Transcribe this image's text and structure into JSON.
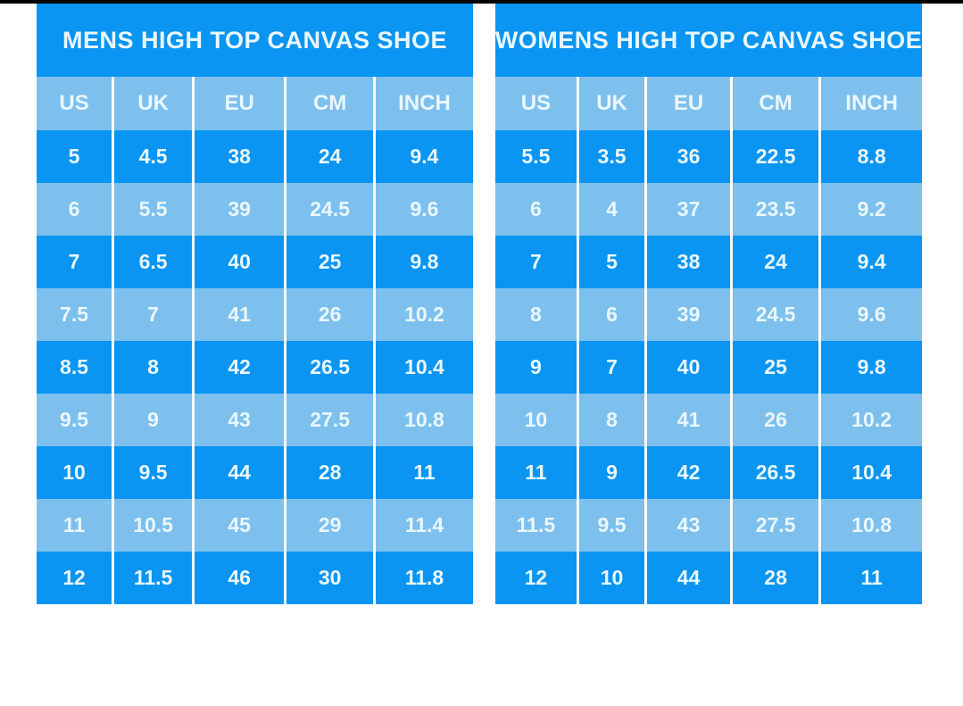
{
  "page": {
    "background_color": "#ffffff",
    "top_border_color": "#000000"
  },
  "colors": {
    "dark_blue": "#0995f1",
    "light_blue": "#7dc0ed",
    "text": "#eaf7fe",
    "divider": "#ffffff"
  },
  "chart_data": [
    {
      "type": "table",
      "title": "MENS HIGH TOP CANVAS SHOE",
      "columns": [
        "US",
        "UK",
        "EU",
        "CM",
        "INCH"
      ],
      "rows": [
        [
          "5",
          "4.5",
          "38",
          "24",
          "9.4"
        ],
        [
          "6",
          "5.5",
          "39",
          "24.5",
          "9.6"
        ],
        [
          "7",
          "6.5",
          "40",
          "25",
          "9.8"
        ],
        [
          "7.5",
          "7",
          "41",
          "26",
          "10.2"
        ],
        [
          "8.5",
          "8",
          "42",
          "26.5",
          "10.4"
        ],
        [
          "9.5",
          "9",
          "43",
          "27.5",
          "10.8"
        ],
        [
          "10",
          "9.5",
          "44",
          "28",
          "11"
        ],
        [
          "11",
          "10.5",
          "45",
          "29",
          "11.4"
        ],
        [
          "12",
          "11.5",
          "46",
          "30",
          "11.8"
        ]
      ],
      "layout_hints": {
        "row_striping": [
          "dark_blue",
          "light_blue"
        ],
        "first_data_row": "dark_blue",
        "header_band": "light_blue",
        "title_band": "dark_blue"
      }
    },
    {
      "type": "table",
      "title": "WOMENS HIGH TOP CANVAS SHOE",
      "columns": [
        "US",
        "UK",
        "EU",
        "CM",
        "INCH"
      ],
      "rows": [
        [
          "5.5",
          "3.5",
          "36",
          "22.5",
          "8.8"
        ],
        [
          "6",
          "4",
          "37",
          "23.5",
          "9.2"
        ],
        [
          "7",
          "5",
          "38",
          "24",
          "9.4"
        ],
        [
          "8",
          "6",
          "39",
          "24.5",
          "9.6"
        ],
        [
          "9",
          "7",
          "40",
          "25",
          "9.8"
        ],
        [
          "10",
          "8",
          "41",
          "26",
          "10.2"
        ],
        [
          "11",
          "9",
          "42",
          "26.5",
          "10.4"
        ],
        [
          "11.5",
          "9.5",
          "43",
          "27.5",
          "10.8"
        ],
        [
          "12",
          "10",
          "44",
          "28",
          "11"
        ]
      ],
      "layout_hints": {
        "row_striping": [
          "dark_blue",
          "light_blue"
        ],
        "first_data_row": "dark_blue",
        "header_band": "light_blue",
        "title_band": "dark_blue"
      }
    }
  ]
}
